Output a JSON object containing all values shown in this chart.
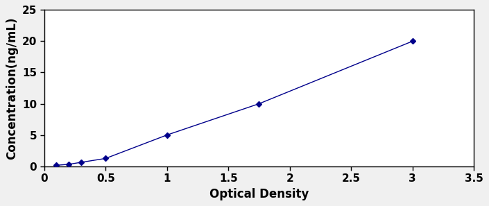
{
  "x_data": [
    0.1,
    0.2,
    0.3,
    0.5,
    1.0,
    1.75,
    3.0
  ],
  "y_data": [
    0.156,
    0.3125,
    0.625,
    1.25,
    5.0,
    10.0,
    20.0
  ],
  "line_color": "#00008B",
  "marker_color": "#00008B",
  "marker_style": "D",
  "marker_size": 4,
  "line_width": 1.0,
  "line_style": "-",
  "xlabel": "Optical Density",
  "ylabel": "Concentration(ng/mL)",
  "xlim": [
    0.0,
    3.5
  ],
  "ylim": [
    0,
    25
  ],
  "xticks": [
    0,
    0.5,
    1.0,
    1.5,
    2.0,
    2.5,
    3.0,
    3.5
  ],
  "xticklabels": [
    "0",
    "0.5",
    "1",
    "1.5",
    "2",
    "2.5",
    "3",
    "3.5"
  ],
  "yticks": [
    0,
    5,
    10,
    15,
    20,
    25
  ],
  "yticklabels": [
    "0",
    "5",
    "10",
    "15",
    "20",
    "25"
  ],
  "tick_label_fontsize": 11,
  "axis_label_fontsize": 12,
  "background_color": "#ffffff",
  "spine_color": "#000000",
  "figure_facecolor": "#f0f0f0"
}
